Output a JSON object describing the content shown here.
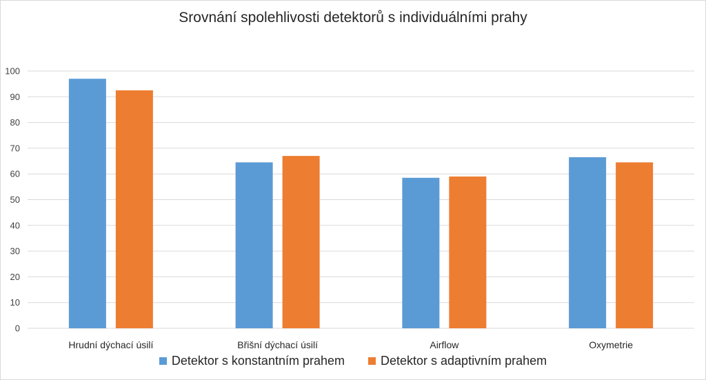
{
  "chart_data": {
    "type": "bar",
    "title": "Srovnání spolehlivosti detektorů s individuálními prahy",
    "xlabel": "",
    "ylabel": "",
    "ylim": [
      0,
      100
    ],
    "yticks": [
      "0",
      "10",
      "20",
      "30",
      "40",
      "50",
      "60",
      "70",
      "80",
      "90",
      "100"
    ],
    "grid": true,
    "legend_position": "bottom",
    "categories": [
      "Hrudní dýchací úsilí",
      "Břišní dýchací úsilí",
      "Airflow",
      "Oxymetrie"
    ],
    "series": [
      {
        "name": "Detektor s konstantním prahem",
        "color": "#5b9bd5",
        "values": [
          97,
          64.5,
          58.5,
          66.5
        ]
      },
      {
        "name": "Detektor s adaptivním prahem",
        "color": "#ed7d31",
        "values": [
          92.5,
          67,
          59,
          64.5
        ]
      }
    ]
  }
}
